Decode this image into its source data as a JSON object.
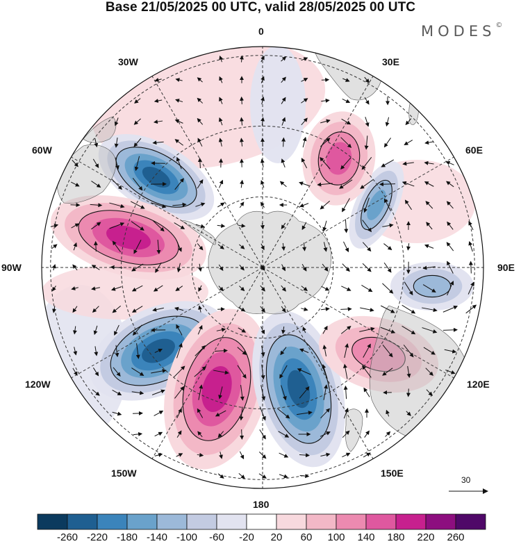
{
  "title": "Base 21/05/2025 00 UTC, valid 28/05/2025 00 UTC",
  "brand": "MODES",
  "brand_mark": "©",
  "map": {
    "projection": "south-polar-stereographic",
    "longitude_labels": {
      "top": "0",
      "top_right": "30E",
      "upper_right": "60E",
      "right": "90E",
      "lower_right": "120E",
      "bottom_right": "150E",
      "bottom": "180",
      "bottom_left": "150W",
      "lower_left": "120W",
      "left": "90W",
      "upper_left": "60W",
      "top_left": "30W"
    },
    "reference_vector_label": "30",
    "anomaly_centers": [
      {
        "name": "negative-atlantic",
        "sign": "negative",
        "peak": -220
      },
      {
        "name": "positive-west",
        "sign": "positive",
        "peak": 200
      },
      {
        "name": "negative-southwest",
        "sign": "negative",
        "peak": -220
      },
      {
        "name": "positive-south",
        "sign": "positive",
        "peak": 200
      },
      {
        "name": "negative-south",
        "sign": "negative",
        "peak": -220
      },
      {
        "name": "negative-east-upper",
        "sign": "negative",
        "peak": -140
      },
      {
        "name": "negative-east",
        "sign": "negative",
        "peak": -120
      },
      {
        "name": "positive-north-upper",
        "sign": "positive",
        "peak": 140
      },
      {
        "name": "positive-southeast",
        "sign": "positive",
        "peak": 100
      }
    ]
  },
  "colorbar": {
    "tick_labels": [
      "-260",
      "-220",
      "-180",
      "-140",
      "-100",
      "-60",
      "-20",
      "20",
      "60",
      "100",
      "140",
      "180",
      "220",
      "260"
    ],
    "colors": [
      "#0b3a5e",
      "#1f5f91",
      "#3b84bb",
      "#6aa2cb",
      "#9cb9d9",
      "#c3cbe2",
      "#e2e3f0",
      "#ffffff",
      "#f8d9de",
      "#f3b8c7",
      "#ec8ab0",
      "#df589f",
      "#c7208e",
      "#8d0e7f",
      "#4f0868"
    ]
  }
}
